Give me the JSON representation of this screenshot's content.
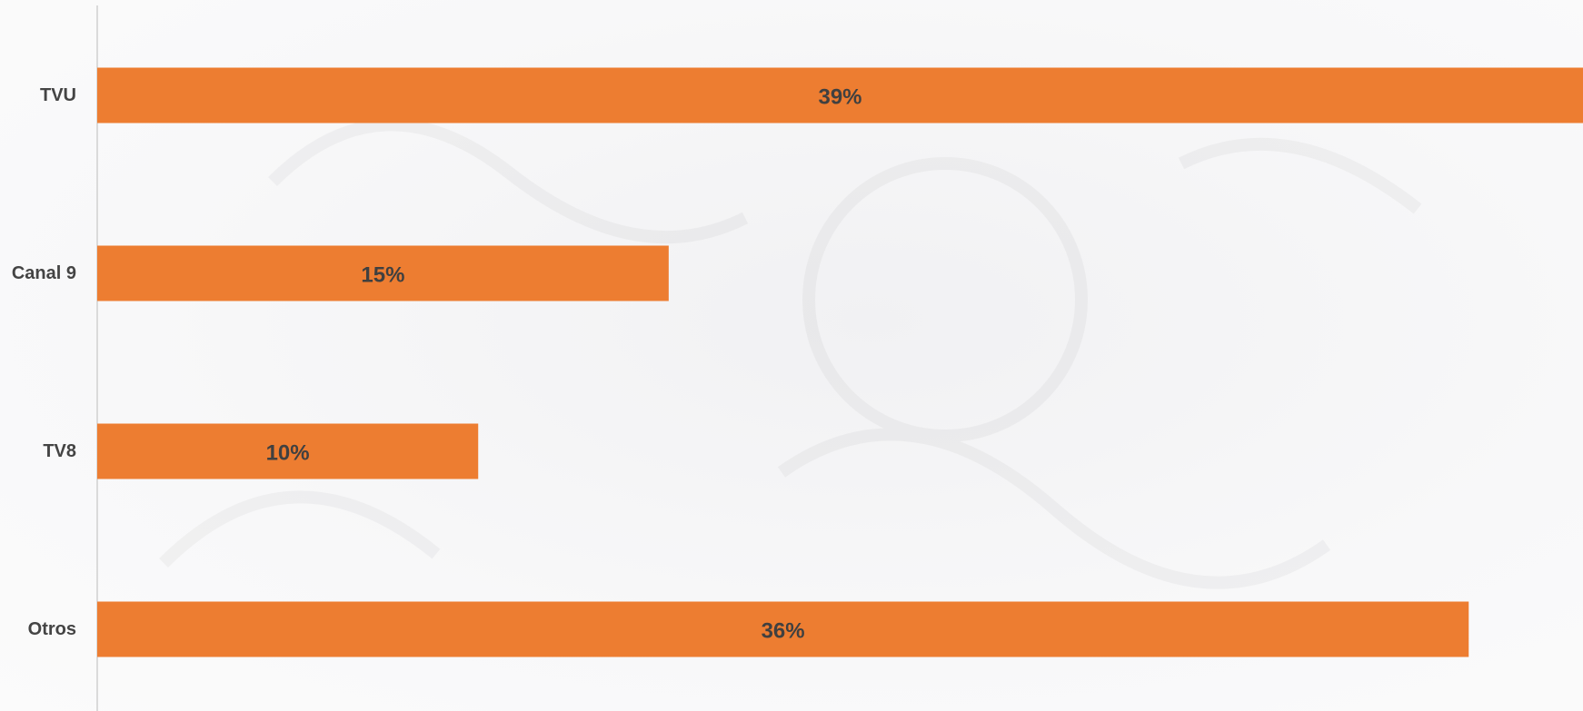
{
  "chart_data": {
    "type": "bar",
    "orientation": "horizontal",
    "categories": [
      "TVU",
      "Canal 9",
      "TV8",
      "Otros"
    ],
    "values": [
      39,
      15,
      10,
      36
    ],
    "data_labels": [
      "39%",
      "15%",
      "10%",
      "36%"
    ],
    "unit": "%",
    "xlim": [
      0,
      39
    ],
    "grid": false,
    "legend": "none",
    "bar_color": "#ED7D31",
    "title": "",
    "xlabel": "",
    "ylabel": ""
  }
}
